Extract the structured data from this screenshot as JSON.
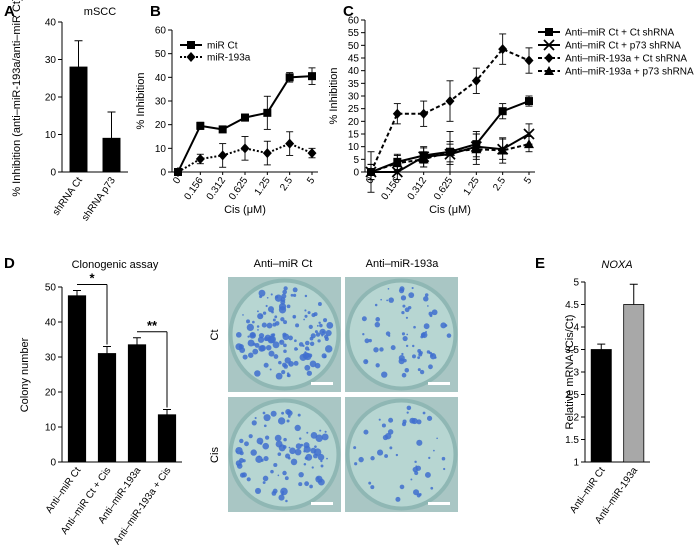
{
  "chart_data": [
    {
      "panel": "A",
      "type": "bar",
      "title": "mSCC",
      "ylabel": "% Inhibition (anti–miR-193a/anti–miR Ct)",
      "categories": [
        "shRNA Ct",
        "shRNA p73"
      ],
      "values": [
        28,
        9
      ],
      "errors": [
        7,
        7
      ],
      "ylim": [
        0,
        40
      ],
      "yticks": [
        0,
        10,
        20,
        30,
        40
      ]
    },
    {
      "panel": "B",
      "type": "line",
      "xlabel": "Cis (μM)",
      "ylabel": "% Inhibition",
      "x": [
        "0",
        "0.156",
        "0.312",
        "0.625",
        "1.25",
        "2.5",
        "5"
      ],
      "ylim": [
        0,
        60
      ],
      "yticks": [
        0,
        10,
        20,
        30,
        40,
        50,
        60
      ],
      "legend_position": "top-left",
      "series": [
        {
          "name": "miR Ct",
          "marker": "square",
          "dash": "solid",
          "values": [
            0,
            19.5,
            18,
            23,
            25,
            40,
            40.5
          ],
          "errors": [
            1,
            1.5,
            1,
            1.5,
            7,
            2,
            3.5
          ]
        },
        {
          "name": "miR-193a",
          "marker": "diamond",
          "dash": "dotted",
          "values": [
            0,
            5.5,
            7,
            10,
            8,
            12,
            8
          ],
          "errors": [
            1,
            2,
            5,
            5,
            5,
            5,
            2
          ]
        }
      ]
    },
    {
      "panel": "C",
      "type": "line",
      "xlabel": "Cis (μM)",
      "ylabel": "% Inhibition",
      "x": [
        "0",
        "0.156",
        "0.312",
        "0.625",
        "1.25",
        "2.5",
        "5"
      ],
      "ylim": [
        0,
        60
      ],
      "yticks": [
        0,
        5,
        10,
        15,
        20,
        25,
        30,
        35,
        40,
        45,
        50,
        55,
        60
      ],
      "legend_position": "right",
      "series": [
        {
          "name": "Anti–miR Ct + Ct shRNA",
          "marker": "square",
          "dash": "solid",
          "values": [
            0,
            4,
            6.5,
            8,
            11,
            24,
            28
          ],
          "errors": [
            3,
            3,
            3,
            4,
            5,
            3,
            2
          ]
        },
        {
          "name": "Anti–miR Ct + p73 shRNA",
          "marker": "x",
          "dash": "solid",
          "values": [
            0,
            0,
            6,
            7,
            10,
            9,
            15
          ],
          "errors": [
            3,
            3,
            4,
            4,
            5,
            4,
            4
          ]
        },
        {
          "name": "Anti–miR-193a + Ct shRNA",
          "marker": "diamond",
          "dash": "dashed",
          "values": [
            0,
            23,
            23,
            28,
            36,
            48.5,
            44
          ],
          "errors": [
            8,
            4,
            5,
            8,
            5,
            6,
            5
          ]
        },
        {
          "name": "Anti–miR-193a + p73 shRNA",
          "marker": "triangle",
          "dash": "dashed",
          "values": [
            0,
            3.5,
            5,
            8,
            9,
            8.5,
            11
          ],
          "errors": [
            3,
            3,
            3,
            8,
            6,
            5,
            3
          ]
        }
      ]
    },
    {
      "panel": "D",
      "type": "bar",
      "title": "Clonogenic assay",
      "ylabel": "Colony number",
      "categories": [
        "Anti–miR Ct",
        "Anti–miR Ct + Cis",
        "Anti–miR-193a",
        "Anti–miR-193a + Cis"
      ],
      "values": [
        47.5,
        31,
        33.5,
        13.5
      ],
      "errors": [
        1.5,
        2,
        2,
        1.5
      ],
      "ylim": [
        0,
        50
      ],
      "yticks": [
        0,
        10,
        20,
        30,
        40,
        50
      ],
      "significance": [
        {
          "pair": [
            0,
            1
          ],
          "label": "*"
        },
        {
          "pair": [
            2,
            3
          ],
          "label": "**"
        }
      ]
    },
    {
      "panel": "E",
      "type": "bar",
      "title": "NOXA",
      "ylabel": "Relative mRNA (Cis/Ct)",
      "categories": [
        "Anti–miR Ct",
        "Anti–miR-193a"
      ],
      "values": [
        3.5,
        4.5
      ],
      "errors": [
        0.12,
        0.45
      ],
      "colors": [
        "#000000",
        "#a8a8a8"
      ],
      "ylim": [
        1,
        5
      ],
      "yticks": [
        1,
        1.5,
        2,
        2.5,
        3,
        3.5,
        4,
        4.5,
        5
      ]
    }
  ],
  "panel_letters": [
    "A",
    "B",
    "C",
    "D",
    "E"
  ],
  "photos": {
    "col_labels": [
      "Anti–miR Ct",
      "Anti–miR-193a"
    ],
    "row_labels": [
      "Ct",
      "Cis"
    ],
    "colors": {
      "medium": "#b7d6d2",
      "colony": "#3f6ecf",
      "rim": "#8fb7b4"
    }
  }
}
